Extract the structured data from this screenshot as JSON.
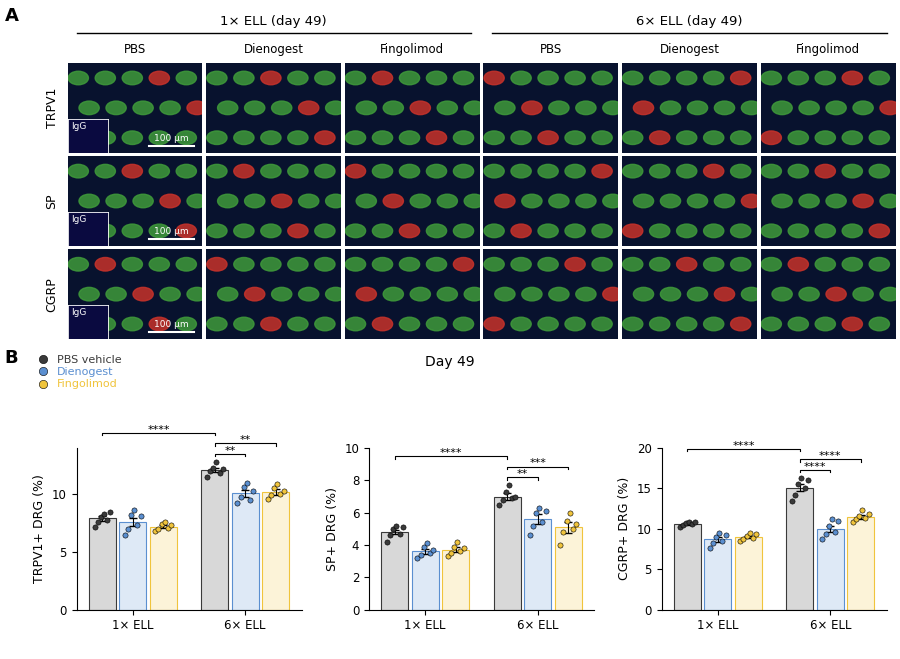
{
  "panel_labels": [
    "A",
    "B"
  ],
  "panel_a": {
    "groups": [
      {
        "title": "1× ELL (day 49)",
        "columns": [
          "PBS",
          "Dienogest",
          "Fingolimod"
        ]
      },
      {
        "title": "6× ELL (day 49)",
        "columns": [
          "PBS",
          "Dienogest",
          "Fingolimod"
        ]
      }
    ],
    "rows": [
      "TRPV1",
      "SP",
      "CGRP"
    ],
    "inset": "IgG",
    "scale_bar": "100 μm"
  },
  "panel_b_title": "Day 49",
  "chart_data": [
    {
      "type": "bar",
      "ylabel": "TRPV1+ DRG (%)",
      "categories": [
        "1× ELL",
        "6× ELL"
      ],
      "ylim": [
        0,
        14
      ],
      "yticks": [
        0,
        5,
        10
      ],
      "legend": "upper left",
      "series": [
        {
          "name": "PBS vehicle",
          "color": "#3a3a3a",
          "values": [
            7.9,
            12.1
          ],
          "errors": [
            0.2,
            0.2
          ],
          "points": [
            [
              7.2,
              7.6,
              8.0,
              8.3,
              7.8,
              8.5
            ],
            [
              11.5,
              12.0,
              12.3,
              12.8,
              11.8,
              12.2
            ]
          ]
        },
        {
          "name": "Dienogest",
          "color": "#5b8fd0",
          "values": [
            7.6,
            10.1
          ],
          "errors": [
            0.35,
            0.3
          ],
          "points": [
            [
              6.5,
              7.0,
              8.2,
              8.6,
              7.3,
              8.1
            ],
            [
              9.2,
              9.8,
              10.6,
              11.0,
              9.5,
              10.3
            ]
          ]
        },
        {
          "name": "Fingolimod",
          "color": "#f0c43c",
          "values": [
            7.2,
            10.2
          ],
          "errors": [
            0.15,
            0.25
          ],
          "points": [
            [
              6.8,
              7.0,
              7.4,
              7.6,
              7.1,
              7.3
            ],
            [
              9.6,
              9.9,
              10.5,
              10.9,
              10.0,
              10.3
            ]
          ]
        }
      ],
      "significance": [
        {
          "from": [
            1,
            0
          ],
          "to": [
            1,
            1
          ],
          "label": "**"
        },
        {
          "from": [
            1,
            0
          ],
          "to": [
            1,
            2
          ],
          "label": "**"
        },
        {
          "from": [
            0,
            0
          ],
          "to": [
            1,
            0
          ],
          "label": "****"
        }
      ]
    },
    {
      "type": "bar",
      "ylabel": "SP+ DRG (%)",
      "categories": [
        "1× ELL",
        "6× ELL"
      ],
      "ylim": [
        0,
        10
      ],
      "yticks": [
        0,
        2,
        4,
        6,
        8,
        10
      ],
      "series": [
        {
          "name": "PBS vehicle",
          "color": "#3a3a3a",
          "values": [
            4.8,
            7.0
          ],
          "errors": [
            0.15,
            0.2
          ],
          "points": [
            [
              4.2,
              4.6,
              5.0,
              5.2,
              4.7,
              5.1
            ],
            [
              6.5,
              6.8,
              7.3,
              7.7,
              6.9,
              7.0
            ]
          ]
        },
        {
          "name": "Dienogest",
          "color": "#5b8fd0",
          "values": [
            3.6,
            5.6
          ],
          "errors": [
            0.15,
            0.3
          ],
          "points": [
            [
              3.2,
              3.4,
              3.9,
              4.1,
              3.5,
              3.7
            ],
            [
              4.6,
              5.2,
              6.0,
              6.3,
              5.4,
              6.1
            ]
          ]
        },
        {
          "name": "Fingolimod",
          "color": "#f0c43c",
          "values": [
            3.7,
            5.1
          ],
          "errors": [
            0.15,
            0.35
          ],
          "points": [
            [
              3.3,
              3.5,
              3.9,
              4.2,
              3.6,
              3.8
            ],
            [
              4.0,
              4.8,
              5.5,
              6.0,
              5.0,
              5.3
            ]
          ]
        }
      ],
      "significance": [
        {
          "from": [
            1,
            0
          ],
          "to": [
            1,
            1
          ],
          "label": "**"
        },
        {
          "from": [
            1,
            0
          ],
          "to": [
            1,
            2
          ],
          "label": "***"
        },
        {
          "from": [
            0,
            0
          ],
          "to": [
            1,
            0
          ],
          "label": "****"
        }
      ]
    },
    {
      "type": "bar",
      "ylabel": "CGRP+ DRG (%)",
      "categories": [
        "1× ELL",
        "6× ELL"
      ],
      "ylim": [
        0,
        20
      ],
      "yticks": [
        0,
        5,
        10,
        15,
        20
      ],
      "series": [
        {
          "name": "PBS vehicle",
          "color": "#3a3a3a",
          "values": [
            10.6,
            15.1
          ],
          "errors": [
            0.1,
            0.45
          ],
          "points": [
            [
              10.2,
              10.5,
              10.7,
              10.9,
              10.6,
              10.8
            ],
            [
              13.5,
              14.2,
              15.5,
              16.3,
              15.0,
              16.0
            ]
          ]
        },
        {
          "name": "Dienogest",
          "color": "#5b8fd0",
          "values": [
            8.7,
            10.0
          ],
          "errors": [
            0.3,
            0.4
          ],
          "points": [
            [
              7.6,
              8.2,
              9.0,
              9.5,
              8.5,
              9.2
            ],
            [
              8.7,
              9.3,
              10.4,
              11.2,
              9.6,
              11.0
            ]
          ]
        },
        {
          "name": "Fingolimod",
          "color": "#f0c43c",
          "values": [
            9.0,
            11.5
          ],
          "errors": [
            0.15,
            0.25
          ],
          "points": [
            [
              8.5,
              8.7,
              9.1,
              9.5,
              8.9,
              9.3
            ],
            [
              10.8,
              11.2,
              11.6,
              12.3,
              11.3,
              11.8
            ]
          ]
        }
      ],
      "significance": [
        {
          "from": [
            1,
            0
          ],
          "to": [
            1,
            1
          ],
          "label": "****"
        },
        {
          "from": [
            1,
            0
          ],
          "to": [
            1,
            2
          ],
          "label": "****"
        },
        {
          "from": [
            0,
            0
          ],
          "to": [
            1,
            0
          ],
          "label": "****"
        }
      ]
    }
  ]
}
